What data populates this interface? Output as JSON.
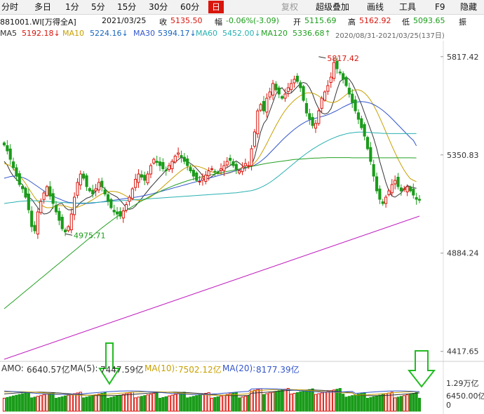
{
  "toolbar": {
    "periods": [
      "分时",
      "多日",
      "1分",
      "5分",
      "15分",
      "30分",
      "60分",
      "日"
    ],
    "active_period": "日",
    "right_items": [
      "复权",
      "超级叠加",
      "画线",
      "工具",
      "F9",
      "隐藏"
    ]
  },
  "quote": {
    "code": "881001.WI[万得全A]",
    "date": "2021/03/25",
    "close_label": "收",
    "close": "5135.50",
    "change_label": "幅",
    "change": "-0.06%(-3.09)",
    "open_label": "开",
    "open": "5115.69",
    "high_label": "高",
    "high": "5162.92",
    "low_label": "低",
    "low": "5093.65",
    "amp_label": "振"
  },
  "ma": {
    "ma5": "MA5",
    "ma5_val": "5192.18↓",
    "ma10": "MA10",
    "ma10_val": "5224.16↓",
    "ma30": "MA30",
    "ma30_val": "5394.17↓",
    "ma60": "MA60",
    "ma60_val": "5452.00↓",
    "ma120": "MA120",
    "ma120_val": "5336.68↑",
    "range_text": "2020/08/31-2021/03/25(137日)"
  },
  "volume": {
    "amo_label": "AMO:",
    "amo": "6640.57亿",
    "ma5_label": "MA(5):",
    "ma5": "7447.59亿",
    "ma10_label": "MA(10):",
    "ma10": "7502.12亿",
    "ma20_label": "MA(20):",
    "ma20": "8177.39亿",
    "axis": [
      "1.29万亿",
      "6450.00亿",
      "0"
    ]
  },
  "colors": {
    "up": "#d9150c",
    "down": "#1a9c1a",
    "ma5": "#333333",
    "ma10": "#c8a000",
    "ma30": "#3355cc",
    "ma60": "#2ab0b0",
    "ma120": "#22a022",
    "ma250": "#c020c0",
    "arrow": "#22bb22",
    "text_red": "#d9150c",
    "text_blue": "#1565c0"
  },
  "chart_data": {
    "type": "candlestick",
    "y_ticks": [
      5817.42,
      5350.83,
      4884.24,
      4417.65
    ],
    "y_tick_labels": [
      "5817.42",
      "5350.83",
      "4884.24",
      "4417.65"
    ],
    "ylim": [
      4380,
      5880
    ],
    "annotations": [
      {
        "label": "5817.42",
        "value": 5817.42,
        "index": 103
      },
      {
        "label": "4975.71",
        "value": 4975.71,
        "index": 20
      }
    ],
    "n_bars": 137,
    "close": [
      5398,
      5370,
      5330,
      5290,
      5250,
      5210,
      5190,
      5150,
      5090,
      5010,
      4990,
      5080,
      5130,
      5170,
      5200,
      5155,
      5120,
      5080,
      5040,
      5000,
      4985,
      5010,
      5070,
      5150,
      5220,
      5260,
      5240,
      5200,
      5180,
      5165,
      5190,
      5220,
      5200,
      5165,
      5130,
      5100,
      5080,
      5070,
      5060,
      5085,
      5115,
      5150,
      5190,
      5235,
      5260,
      5245,
      5230,
      5260,
      5300,
      5330,
      5315,
      5300,
      5285,
      5275,
      5300,
      5320,
      5345,
      5360,
      5340,
      5320,
      5300,
      5275,
      5250,
      5230,
      5225,
      5240,
      5255,
      5275,
      5285,
      5270,
      5265,
      5285,
      5300,
      5320,
      5325,
      5300,
      5280,
      5275,
      5290,
      5310,
      5300,
      5380,
      5460,
      5560,
      5590,
      5560,
      5620,
      5650,
      5690,
      5660,
      5640,
      5620,
      5640,
      5670,
      5690,
      5710,
      5700,
      5670,
      5610,
      5550,
      5520,
      5490,
      5500,
      5560,
      5620,
      5650,
      5680,
      5720,
      5790,
      5760,
      5740,
      5710,
      5680,
      5640,
      5600,
      5560,
      5520,
      5480,
      5440,
      5380,
      5320,
      5250,
      5180,
      5140,
      5120,
      5150,
      5180,
      5210,
      5230,
      5200,
      5180,
      5190,
      5200,
      5180,
      5160,
      5140,
      5135.5
    ],
    "ma": [
      {
        "name": "MA5",
        "values": [
          5320,
          5302,
          5272,
          5250,
          5235,
          5220,
          5210,
          5180,
          5150,
          5140,
          5120,
          5100,
          5082,
          5070,
          5072,
          5080,
          5102,
          5110,
          5118,
          5120,
          5100,
          5090,
          5090,
          5095,
          5108,
          5125,
          5135,
          5145,
          5150,
          5160,
          5180,
          5200,
          5200,
          5190,
          5175,
          5165,
          5158,
          5150,
          5135,
          5118,
          5100,
          5092,
          5096,
          5108,
          5126,
          5144,
          5162,
          5180,
          5198,
          5214,
          5230,
          5246,
          5262,
          5278,
          5294,
          5308,
          5318,
          5328,
          5340,
          5330,
          5320,
          5310,
          5300,
          5286,
          5270,
          5252,
          5240,
          5238,
          5248,
          5260,
          5270,
          5278,
          5284,
          5291,
          5300,
          5312,
          5322,
          5312,
          5300,
          5289,
          5292,
          5300,
          5340,
          5400,
          5460,
          5500,
          5520,
          5560,
          5600,
          5640,
          5660,
          5670,
          5650,
          5640,
          5645,
          5660,
          5675,
          5690,
          5695,
          5690,
          5670,
          5640,
          5600,
          5570,
          5550,
          5545,
          5550,
          5570,
          5610,
          5660,
          5700,
          5710,
          5720,
          5710,
          5690,
          5660,
          5625,
          5590,
          5550,
          5510,
          5470,
          5430,
          5380,
          5320,
          5270,
          5220,
          5180,
          5155,
          5150,
          5160,
          5170,
          5190,
          5205,
          5200,
          5195,
          5192.18
        ]
      },
      {
        "name": "MA10",
        "values": [
          5310,
          5305,
          5300,
          5285,
          5268,
          5251,
          5235,
          5215,
          5192,
          5170,
          5148,
          5130,
          5115,
          5105,
          5100,
          5100,
          5103,
          5107,
          5110,
          5110,
          5108,
          5104,
          5100,
          5100,
          5102,
          5108,
          5114,
          5122,
          5130,
          5138,
          5148,
          5157,
          5166,
          5172,
          5176,
          5178,
          5177,
          5175,
          5170,
          5163,
          5155,
          5147,
          5141,
          5137,
          5135,
          5135,
          5138,
          5144,
          5152,
          5162,
          5174,
          5187,
          5200,
          5213,
          5226,
          5239,
          5252,
          5264,
          5276,
          5286,
          5293,
          5297,
          5298,
          5297,
          5294,
          5289,
          5283,
          5276,
          5270,
          5266,
          5262,
          5260,
          5260,
          5262,
          5266,
          5271,
          5277,
          5282,
          5287,
          5290,
          5294,
          5300,
          5312,
          5330,
          5352,
          5378,
          5405,
          5434,
          5462,
          5490,
          5516,
          5540,
          5562,
          5580,
          5596,
          5610,
          5622,
          5632,
          5640,
          5645,
          5646,
          5644,
          5639,
          5630,
          5620,
          5611,
          5604,
          5600,
          5600,
          5605,
          5614,
          5625,
          5637,
          5648,
          5656,
          5660,
          5660,
          5655,
          5645,
          5630,
          5610,
          5586,
          5558,
          5527,
          5494,
          5460,
          5426,
          5393,
          5361,
          5331,
          5303,
          5278,
          5256,
          5238,
          5230,
          5224.16
        ]
      },
      {
        "name": "MA30",
        "values": [
          5240,
          5244,
          5248,
          5250,
          5250,
          5248,
          5244,
          5238,
          5230,
          5220,
          5210,
          5200,
          5190,
          5180,
          5170,
          5162,
          5155,
          5148,
          5142,
          5136,
          5130,
          5126,
          5124,
          5122,
          5121,
          5120,
          5120,
          5120,
          5121,
          5122,
          5124,
          5126,
          5128,
          5130,
          5132,
          5134,
          5136,
          5138,
          5140,
          5142,
          5144,
          5146,
          5148,
          5150,
          5152,
          5155,
          5158,
          5161,
          5164,
          5168,
          5172,
          5176,
          5180,
          5184,
          5188,
          5192,
          5196,
          5200,
          5204,
          5208,
          5212,
          5216,
          5220,
          5224,
          5228,
          5232,
          5236,
          5240,
          5244,
          5248,
          5252,
          5256,
          5260,
          5264,
          5268,
          5272,
          5276,
          5280,
          5284,
          5288,
          5292,
          5296,
          5302,
          5310,
          5320,
          5332,
          5345,
          5360,
          5375,
          5390,
          5405,
          5420,
          5434,
          5447,
          5460,
          5472,
          5483,
          5493,
          5502,
          5510,
          5516,
          5521,
          5525,
          5529,
          5533,
          5537,
          5542,
          5548,
          5555,
          5562,
          5570,
          5578,
          5585,
          5592,
          5597,
          5601,
          5603,
          5604,
          5603,
          5600,
          5596,
          5590,
          5582,
          5573,
          5562,
          5550,
          5537,
          5523,
          5508,
          5493,
          5478,
          5463,
          5448,
          5433,
          5420,
          5394.17
        ]
      },
      {
        "name": "MA60",
        "values": [
          5120,
          5122,
          5124,
          5126,
          5128,
          5130,
          5131,
          5132,
          5133,
          5133,
          5133,
          5133,
          5132,
          5131,
          5130,
          5129,
          5128,
          5127,
          5126,
          5125,
          5124,
          5123,
          5122,
          5122,
          5122,
          5122,
          5122,
          5122,
          5123,
          5124,
          5125,
          5126,
          5127,
          5128,
          5129,
          5130,
          5131,
          5132,
          5133,
          5134,
          5135,
          5136,
          5137,
          5138,
          5139,
          5140,
          5141,
          5142,
          5143,
          5144,
          5145,
          5146,
          5147,
          5148,
          5149,
          5150,
          5151,
          5152,
          5153,
          5154,
          5155,
          5156,
          5157,
          5158,
          5159,
          5160,
          5161,
          5162,
          5163,
          5164,
          5165,
          5166,
          5167,
          5168,
          5169,
          5170,
          5171,
          5173,
          5175,
          5177,
          5179,
          5181,
          5185,
          5190,
          5196,
          5203,
          5211,
          5220,
          5230,
          5241,
          5252,
          5264,
          5276,
          5288,
          5300,
          5312,
          5324,
          5336,
          5347,
          5358,
          5368,
          5378,
          5387,
          5396,
          5404,
          5412,
          5419,
          5426,
          5432,
          5438,
          5443,
          5447,
          5451,
          5454,
          5456,
          5458,
          5459,
          5459,
          5459,
          5458,
          5457,
          5456,
          5455,
          5454,
          5453,
          5453,
          5452,
          5452,
          5452,
          5452,
          5452,
          5452,
          5452,
          5452,
          5452,
          5452.0
        ]
      },
      {
        "name": "MA120",
        "values": [
          4620,
          4632,
          4644,
          4656,
          4668,
          4680,
          4692,
          4704,
          4716,
          4728,
          4740,
          4752,
          4764,
          4776,
          4788,
          4800,
          4812,
          4824,
          4836,
          4848,
          4860,
          4872,
          4884,
          4896,
          4908,
          4920,
          4932,
          4944,
          4956,
          4968,
          4980,
          4992,
          5004,
          5015,
          5026,
          5037,
          5048,
          5058,
          5068,
          5078,
          5088,
          5097,
          5106,
          5115,
          5124,
          5132,
          5140,
          5148,
          5156,
          5163,
          5170,
          5177,
          5184,
          5190,
          5196,
          5202,
          5208,
          5213,
          5218,
          5223,
          5228,
          5232,
          5236,
          5240,
          5244,
          5248,
          5251,
          5254,
          5257,
          5260,
          5263,
          5266,
          5269,
          5272,
          5275,
          5278,
          5281,
          5284,
          5287,
          5290,
          5293,
          5296,
          5299,
          5302,
          5305,
          5308,
          5311,
          5313,
          5315,
          5317,
          5319,
          5321,
          5323,
          5325,
          5327,
          5329,
          5330,
          5331,
          5332,
          5333,
          5334,
          5335,
          5336,
          5336,
          5337,
          5337,
          5338,
          5338,
          5338,
          5338,
          5338,
          5338,
          5338,
          5338,
          5337,
          5337,
          5337,
          5337,
          5337,
          5337,
          5337,
          5337,
          5337,
          5337,
          5337,
          5337,
          5337,
          5337,
          5337,
          5337,
          5337,
          5337,
          5337,
          5337,
          5336.68,
          5336.68
        ]
      },
      {
        "name": "MA250",
        "values": [
          4380,
          4385,
          4390,
          4395,
          4400,
          4405,
          4410,
          4415,
          4420,
          4425,
          4430,
          4435,
          4440,
          4445,
          4450,
          4455,
          4460,
          4465,
          4470,
          4475,
          4480,
          4485,
          4490,
          4495,
          4500,
          4505,
          4510,
          4515,
          4520,
          4525,
          4530,
          4535,
          4540,
          4545,
          4550,
          4555,
          4560,
          4565,
          4570,
          4575,
          4580,
          4585,
          4590,
          4595,
          4600,
          4605,
          4610,
          4615,
          4620,
          4625,
          4630,
          4635,
          4640,
          4645,
          4650,
          4655,
          4660,
          4665,
          4670,
          4675,
          4680,
          4685,
          4690,
          4695,
          4700,
          4705,
          4710,
          4715,
          4720,
          4725,
          4730,
          4735,
          4740,
          4745,
          4750,
          4755,
          4760,
          4765,
          4770,
          4775,
          4780,
          4785,
          4790,
          4795,
          4800,
          4805,
          4810,
          4815,
          4820,
          4825,
          4830,
          4835,
          4840,
          4845,
          4850,
          4855,
          4860,
          4865,
          4870,
          4875,
          4880,
          4885,
          4890,
          4895,
          4900,
          4905,
          4910,
          4915,
          4920,
          4925,
          4930,
          4935,
          4940,
          4945,
          4950,
          4955,
          4960,
          4965,
          4970,
          4975,
          4980,
          4985,
          4990,
          4995,
          5000,
          5005,
          5010,
          5015,
          5020,
          5025,
          5030,
          5035,
          5040,
          5045,
          5050,
          5055,
          5060
        ]
      }
    ],
    "volume_ylim": [
      0,
      12900
    ],
    "volume_ticks": [
      "1.29万亿",
      "6450.00亿",
      "0"
    ]
  }
}
